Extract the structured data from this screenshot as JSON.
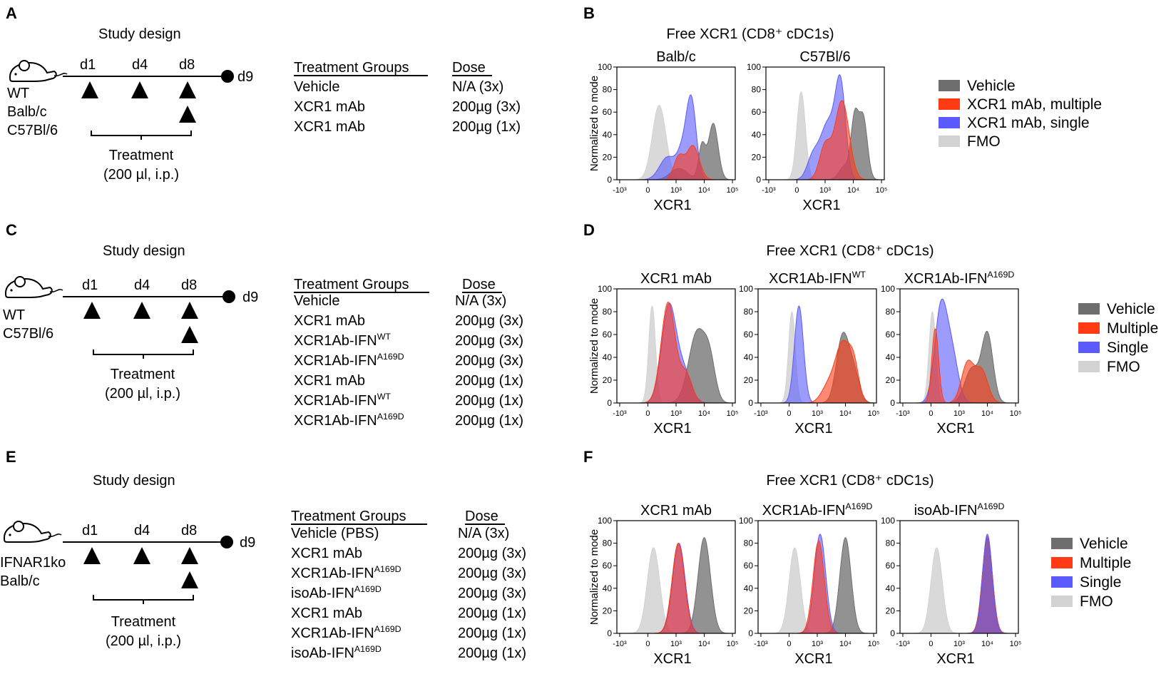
{
  "figure": {
    "panel_letters": [
      "A",
      "B",
      "C",
      "D",
      "E",
      "F"
    ],
    "study_design_title": "Study design",
    "treatment_line1": "Treatment",
    "treatment_line2": "(200 µl, i.p.)",
    "days": [
      "d1",
      "d4",
      "d8"
    ],
    "end_day": "d9",
    "table_headers": {
      "groups": "Treatment Groups",
      "dose": "Dose"
    },
    "plot_title": "Free XCR1 (CD8⁺ cDC1s)",
    "y_axis_label": "Normalized to mode",
    "x_axis_label": "XCR1",
    "y_ticks": [
      "0",
      "20",
      "40",
      "60",
      "80",
      "100"
    ],
    "x_ticks": [
      "-10³",
      "0",
      "10³",
      "10⁴",
      "10⁵"
    ]
  },
  "colors": {
    "vehicle": "#6e6e6e",
    "multiple": "#ff3b14",
    "single": "#5a5aff",
    "fmo": "#d2d2d2"
  },
  "icons": {
    "mouse": "mouse-icon",
    "injection": "triangle-up-icon",
    "endpoint": "circle-icon"
  },
  "panels": {
    "A": {
      "mouse_labels": [
        "WT",
        "Balb/c",
        "C57Bl/6"
      ],
      "groups": [
        {
          "name": "Vehicle",
          "sup": "",
          "dose": "N/A (3x)"
        },
        {
          "name": "XCR1 mAb",
          "sup": "",
          "dose": "200µg (3x)"
        },
        {
          "name": "XCR1 mAb",
          "sup": "",
          "dose": "200µg (1x)"
        }
      ]
    },
    "C": {
      "mouse_labels": [
        "WT",
        "C57Bl/6"
      ],
      "groups": [
        {
          "name": "Vehicle",
          "sup": "",
          "dose": "N/A (3x)"
        },
        {
          "name": "XCR1 mAb",
          "sup": "",
          "dose": "200µg (3x)"
        },
        {
          "name": "XCR1Ab-IFN",
          "sup": "WT",
          "dose": "200µg (3x)"
        },
        {
          "name": "XCR1Ab-IFN",
          "sup": "A169D",
          "dose": "200µg (3x)"
        },
        {
          "name": "XCR1 mAb",
          "sup": "",
          "dose": "200µg (1x)"
        },
        {
          "name": "XCR1Ab-IFN",
          "sup": "WT",
          "dose": "200µg (1x)"
        },
        {
          "name": "XCR1Ab-IFN",
          "sup": "A169D",
          "dose": "200µg (1x)"
        }
      ]
    },
    "E": {
      "mouse_labels": [
        "IFNAR1ko",
        "Balb/c"
      ],
      "groups": [
        {
          "name": "Vehicle (PBS)",
          "sup": "",
          "dose": "N/A (3x)"
        },
        {
          "name": "XCR1 mAb",
          "sup": "",
          "dose": "200µg (3x)"
        },
        {
          "name": "XCR1Ab-IFN",
          "sup": "A169D",
          "dose": "200µg (3x)"
        },
        {
          "name": "isoAb-IFN",
          "sup": "A169D",
          "dose": "200µg (3x)"
        },
        {
          "name": "XCR1 mAb",
          "sup": "",
          "dose": "200µg (1x)"
        },
        {
          "name": "XCR1Ab-IFN",
          "sup": "A169D",
          "dose": "200µg (1x)"
        },
        {
          "name": "isoAb-IFN",
          "sup": "A169D",
          "dose": "200µg (1x)"
        }
      ]
    },
    "B": {
      "legend": [
        "Vehicle",
        "XCR1 mAb, multiple",
        "XCR1 mAb, single",
        "FMO"
      ]
    },
    "D": {
      "legend": [
        "Vehicle",
        "Multiple",
        "Single",
        "FMO"
      ]
    },
    "F": {
      "legend": [
        "Vehicle",
        "Multiple",
        "Single",
        "FMO"
      ]
    }
  },
  "chart_data": [
    {
      "type": "area",
      "panel": "B",
      "title": "Balb/c",
      "title_sup": "",
      "xlabel": "XCR1",
      "ylabel": "Normalized to mode",
      "ylim": [
        0,
        100
      ],
      "x_scale": "biexponential, positions: -10^3=-1, 0=0, 10^3=1, 10^4=2, 10^5=3",
      "series": [
        {
          "name": "FMO",
          "peaks": [
            {
              "x": 0.4,
              "height": 66,
              "width": 0.24
            }
          ]
        },
        {
          "name": "Vehicle",
          "peaks": [
            {
              "x": 1.92,
              "height": 30,
              "width": 0.12
            },
            {
              "x": 2.32,
              "height": 50,
              "width": 0.17
            },
            {
              "x": 1.1,
              "height": 10,
              "width": 0.3
            }
          ]
        },
        {
          "name": "XCR1 mAb, single",
          "peaks": [
            {
              "x": 1.55,
              "height": 66,
              "width": 0.17
            },
            {
              "x": 0.7,
              "height": 20,
              "width": 0.28
            },
            {
              "x": 1.25,
              "height": 25,
              "width": 0.2
            }
          ]
        },
        {
          "name": "XCR1 mAb, multiple",
          "peaks": [
            {
              "x": 1.6,
              "height": 30,
              "width": 0.22
            },
            {
              "x": 1.1,
              "height": 20,
              "width": 0.18
            }
          ]
        }
      ]
    },
    {
      "type": "area",
      "panel": "B",
      "title": "C57Bl/6",
      "title_sup": "",
      "xlabel": "XCR1",
      "ylabel": "Normalized to mode",
      "ylim": [
        0,
        100
      ],
      "x_scale": "biexponential, positions: -10^3=-1, 0=0, 10^3=1, 10^4=2, 10^5=3",
      "series": [
        {
          "name": "FMO",
          "peaks": [
            {
              "x": 0.15,
              "height": 78,
              "width": 0.15
            }
          ]
        },
        {
          "name": "Vehicle",
          "peaks": [
            {
              "x": 2.05,
              "height": 52,
              "width": 0.13
            },
            {
              "x": 2.35,
              "height": 55,
              "width": 0.15
            },
            {
              "x": 1.7,
              "height": 12,
              "width": 0.2
            }
          ]
        },
        {
          "name": "XCR1 mAb, single",
          "peaks": [
            {
              "x": 1.55,
              "height": 78,
              "width": 0.18
            },
            {
              "x": 1.1,
              "height": 50,
              "width": 0.28
            },
            {
              "x": 0.55,
              "height": 18,
              "width": 0.2
            }
          ]
        },
        {
          "name": "XCR1 mAb, multiple",
          "peaks": [
            {
              "x": 1.6,
              "height": 70,
              "width": 0.25
            },
            {
              "x": 1.0,
              "height": 30,
              "width": 0.2
            }
          ]
        }
      ]
    },
    {
      "type": "area",
      "panel": "D",
      "title": "XCR1 mAb",
      "title_sup": "",
      "xlabel": "XCR1",
      "ylabel": "Normalized to mode",
      "ylim": [
        0,
        100
      ],
      "x_scale": "biexponential, positions: -10^3=-1, 0=0, 10^3=1, 10^4=2, 10^5=3",
      "series": [
        {
          "name": "FMO",
          "peaks": [
            {
              "x": 0.15,
              "height": 85,
              "width": 0.12
            }
          ]
        },
        {
          "name": "Vehicle",
          "peaks": [
            {
              "x": 1.75,
              "height": 62,
              "width": 0.3
            },
            {
              "x": 2.2,
              "height": 30,
              "width": 0.2
            }
          ]
        },
        {
          "name": "Single",
          "peaks": [
            {
              "x": 0.75,
              "height": 85,
              "width": 0.26
            },
            {
              "x": 1.3,
              "height": 25,
              "width": 0.25
            }
          ]
        },
        {
          "name": "Multiple",
          "peaks": [
            {
              "x": 0.72,
              "height": 88,
              "width": 0.25
            },
            {
              "x": 1.35,
              "height": 25,
              "width": 0.22
            }
          ]
        }
      ]
    },
    {
      "type": "area",
      "panel": "D",
      "title": "XCR1Ab-IFN",
      "title_sup": "WT",
      "xlabel": "XCR1",
      "ylabel": "Normalized to mode",
      "ylim": [
        0,
        100
      ],
      "x_scale": "biexponential, positions: -10^3=-1, 0=0, 10^3=1, 10^4=2, 10^5=3",
      "series": [
        {
          "name": "FMO",
          "peaks": [
            {
              "x": 0.1,
              "height": 80,
              "width": 0.12
            }
          ]
        },
        {
          "name": "Vehicle",
          "peaks": [
            {
              "x": 1.9,
              "height": 58,
              "width": 0.22
            },
            {
              "x": 2.3,
              "height": 25,
              "width": 0.2
            }
          ]
        },
        {
          "name": "Single",
          "peaks": [
            {
              "x": 0.35,
              "height": 85,
              "width": 0.16
            }
          ]
        },
        {
          "name": "Multiple",
          "peaks": [
            {
              "x": 1.9,
              "height": 50,
              "width": 0.25
            },
            {
              "x": 2.3,
              "height": 30,
              "width": 0.18
            },
            {
              "x": 1.4,
              "height": 15,
              "width": 0.25
            }
          ]
        }
      ]
    },
    {
      "type": "area",
      "panel": "D",
      "title": "XCR1Ab-IFN",
      "title_sup": "A169D",
      "xlabel": "XCR1",
      "ylabel": "Normalized to mode",
      "ylim": [
        0,
        100
      ],
      "x_scale": "biexponential, positions: -10^3=-1, 0=0, 10^3=1, 10^4=2, 10^5=3",
      "series": [
        {
          "name": "FMO",
          "peaks": [
            {
              "x": 0.05,
              "height": 80,
              "width": 0.12
            }
          ]
        },
        {
          "name": "Vehicle",
          "peaks": [
            {
              "x": 1.45,
              "height": 30,
              "width": 0.25
            },
            {
              "x": 2.0,
              "height": 60,
              "width": 0.2
            }
          ]
        },
        {
          "name": "Single",
          "peaks": [
            {
              "x": 0.35,
              "height": 82,
              "width": 0.22
            },
            {
              "x": 0.75,
              "height": 40,
              "width": 0.22
            }
          ]
        },
        {
          "name": "Multiple",
          "peaks": [
            {
              "x": 0.15,
              "height": 65,
              "width": 0.12
            },
            {
              "x": 1.3,
              "height": 35,
              "width": 0.22
            },
            {
              "x": 1.8,
              "height": 28,
              "width": 0.22
            }
          ]
        }
      ]
    },
    {
      "type": "area",
      "panel": "F",
      "title": "XCR1 mAb",
      "title_sup": "",
      "xlabel": "XCR1",
      "ylabel": "Normalized to mode",
      "ylim": [
        0,
        100
      ],
      "x_scale": "biexponential, positions: -10^3=-1, 0=0, 10^3=1, 10^4=2, 10^5=3",
      "series": [
        {
          "name": "FMO",
          "peaks": [
            {
              "x": 0.2,
              "height": 76,
              "width": 0.22
            }
          ]
        },
        {
          "name": "Vehicle",
          "peaks": [
            {
              "x": 2.0,
              "height": 85,
              "width": 0.22
            }
          ]
        },
        {
          "name": "Single",
          "peaks": [
            {
              "x": 1.1,
              "height": 80,
              "width": 0.22
            }
          ]
        },
        {
          "name": "Multiple",
          "peaks": [
            {
              "x": 1.08,
              "height": 80,
              "width": 0.22
            }
          ]
        }
      ]
    },
    {
      "type": "area",
      "panel": "F",
      "title": "XCR1Ab-IFN",
      "title_sup": "A169D",
      "xlabel": "XCR1",
      "ylabel": "Normalized to mode",
      "ylim": [
        0,
        100
      ],
      "x_scale": "biexponential, positions: -10^3=-1, 0=0, 10^3=1, 10^4=2, 10^5=3",
      "series": [
        {
          "name": "FMO",
          "peaks": [
            {
              "x": 0.2,
              "height": 76,
              "width": 0.2
            }
          ]
        },
        {
          "name": "Vehicle",
          "peaks": [
            {
              "x": 2.0,
              "height": 85,
              "width": 0.2
            }
          ]
        },
        {
          "name": "Single",
          "peaks": [
            {
              "x": 1.1,
              "height": 88,
              "width": 0.2
            }
          ]
        },
        {
          "name": "Multiple",
          "peaks": [
            {
              "x": 1.05,
              "height": 82,
              "width": 0.2
            }
          ]
        }
      ]
    },
    {
      "type": "area",
      "panel": "F",
      "title": "isoAb-IFN",
      "title_sup": "A169D",
      "xlabel": "XCR1",
      "ylabel": "Normalized to mode",
      "ylim": [
        0,
        100
      ],
      "x_scale": "biexponential, positions: -10^3=-1, 0=0, 10^3=1, 10^4=2, 10^5=3",
      "series": [
        {
          "name": "FMO",
          "peaks": [
            {
              "x": 0.2,
              "height": 76,
              "width": 0.2
            }
          ]
        },
        {
          "name": "Vehicle",
          "peaks": [
            {
              "x": 2.0,
              "height": 84,
              "width": 0.18
            }
          ]
        },
        {
          "name": "Multiple",
          "peaks": [
            {
              "x": 2.0,
              "height": 86,
              "width": 0.18
            }
          ]
        },
        {
          "name": "Single",
          "peaks": [
            {
              "x": 2.0,
              "height": 88,
              "width": 0.17
            }
          ]
        }
      ]
    }
  ]
}
